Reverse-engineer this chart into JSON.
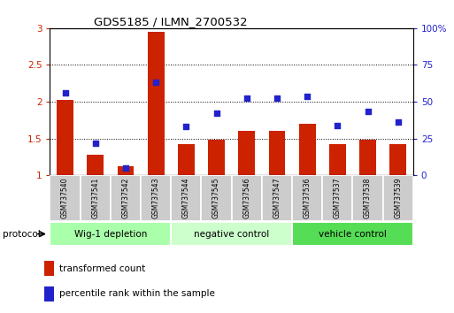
{
  "title": "GDS5185 / ILMN_2700532",
  "samples": [
    "GSM737540",
    "GSM737541",
    "GSM737542",
    "GSM737543",
    "GSM737544",
    "GSM737545",
    "GSM737546",
    "GSM737547",
    "GSM737536",
    "GSM737537",
    "GSM737538",
    "GSM737539"
  ],
  "bar_values": [
    2.02,
    1.28,
    1.12,
    2.95,
    1.42,
    1.48,
    1.6,
    1.6,
    1.7,
    1.42,
    1.48,
    1.42
  ],
  "scatter_values": [
    2.12,
    1.43,
    1.1,
    2.27,
    1.67,
    1.84,
    2.05,
    2.05,
    2.07,
    1.68,
    1.87,
    1.72
  ],
  "bar_color": "#cc2200",
  "scatter_color": "#2222cc",
  "ylim_left": [
    1.0,
    3.0
  ],
  "ylim_right": [
    0,
    100
  ],
  "yticks_left": [
    1.0,
    1.5,
    2.0,
    2.5,
    3.0
  ],
  "yticks_right": [
    0,
    25,
    50,
    75,
    100
  ],
  "ytick_labels_left": [
    "1",
    "1.5",
    "2",
    "2.5",
    "3"
  ],
  "ytick_labels_right": [
    "0",
    "25",
    "50",
    "75",
    "100%"
  ],
  "groups": [
    {
      "label": "Wig-1 depletion",
      "start": 0,
      "end": 4,
      "color": "#aaffaa"
    },
    {
      "label": "negative control",
      "start": 4,
      "end": 8,
      "color": "#ccffcc"
    },
    {
      "label": "vehicle control",
      "start": 8,
      "end": 12,
      "color": "#55dd55"
    }
  ],
  "protocol_label": "protocol",
  "legend_bar_label": "transformed count",
  "legend_scatter_label": "percentile rank within the sample",
  "background_color": "#ffffff",
  "tick_label_color_left": "#cc2200",
  "tick_label_color_right": "#2222cc",
  "bar_width": 0.55,
  "label_box_color": "#cccccc",
  "label_box_border": "#888888"
}
